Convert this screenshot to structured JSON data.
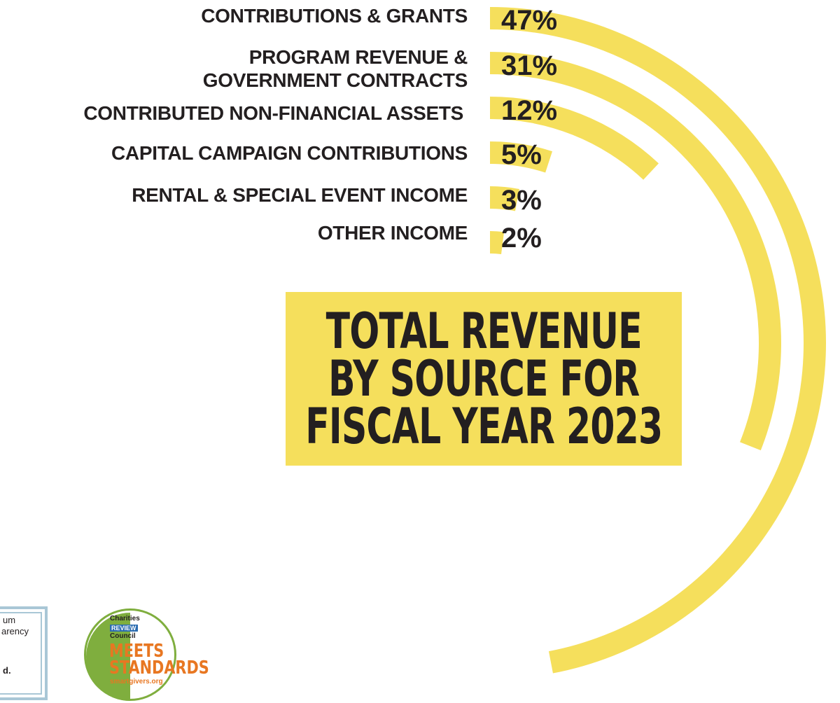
{
  "chart_data": {
    "type": "radial-bar",
    "title": "TOTAL REVENUE BY SOURCE FOR FISCAL YEAR 2023",
    "title_lines": [
      "TOTAL REVENUE",
      "BY SOURCE FOR",
      "FISCAL YEAR 2023"
    ],
    "categories": [
      "CONTRIBUTIONS & GRANTS",
      "PROGRAM REVENUE & GOVERNMENT CONTRACTS",
      "CONTRIBUTED NON-FINANCIAL ASSETS",
      "CAPITAL CAMPAIGN CONTRIBUTIONS",
      "RENTAL & SPECIAL EVENT INCOME",
      "OTHER INCOME"
    ],
    "category_label_lines": [
      [
        "CONTRIBUTIONS & GRANTS"
      ],
      [
        "PROGRAM REVENUE &",
        "GOVERNMENT CONTRACTS"
      ],
      [
        "CONTRIBUTED NON-FINANCIAL ASSETS"
      ],
      [
        "CAPITAL CAMPAIGN CONTRIBUTIONS"
      ],
      [
        "RENTAL & SPECIAL EVENT INCOME"
      ],
      [
        "OTHER INCOME"
      ]
    ],
    "values": [
      47,
      31,
      12,
      5,
      3,
      2
    ],
    "value_labels": [
      "47%",
      "31%",
      "12%",
      "5%",
      "3%",
      "2%"
    ],
    "unit": "%",
    "colors": {
      "bar": "#f5df5c",
      "text": "#231f20",
      "background": "#ffffff"
    }
  },
  "badges": {
    "left_lines": [
      "um",
      "arency",
      "d."
    ],
    "crc": {
      "line1": "Charities",
      "line2": "REVIEW",
      "line3": "Council",
      "big1": "MEETS",
      "big2": "STANDARDS",
      "url": "smartgivers.org",
      "colors": {
        "ring": "#7fae3e",
        "accent": "#e87722",
        "review_bg": "#2b6cb0"
      }
    }
  }
}
